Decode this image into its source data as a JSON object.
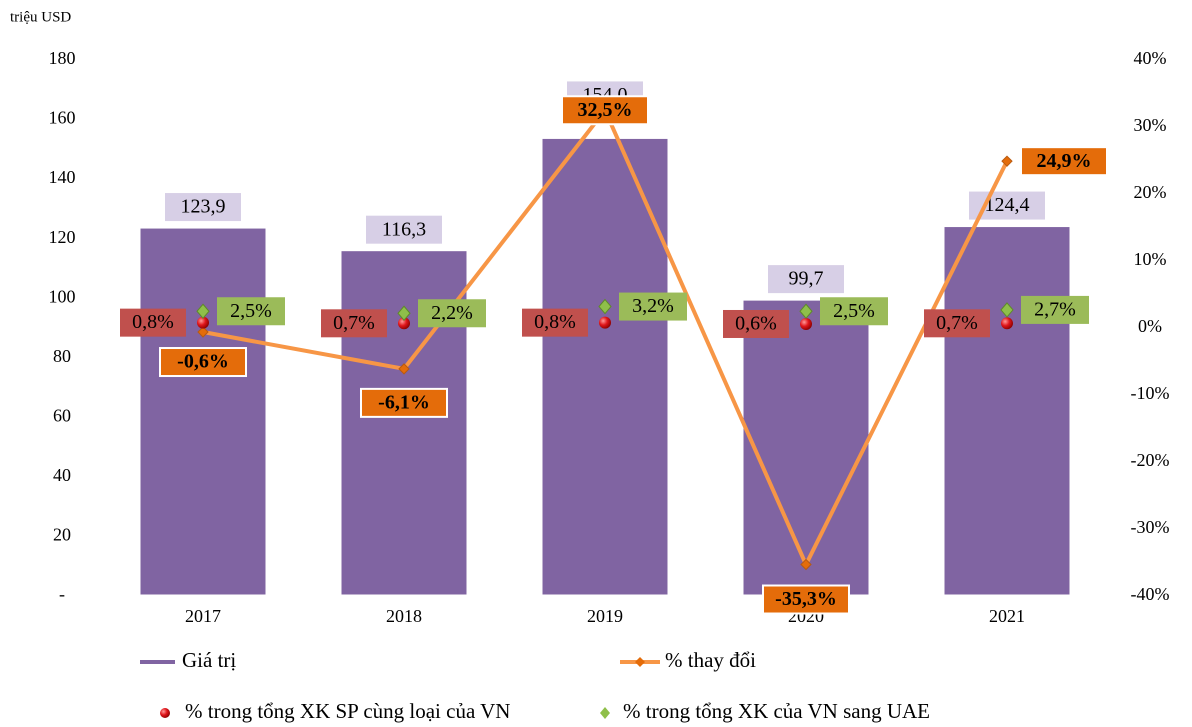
{
  "chart_data": {
    "type": "bar",
    "y_label": "triệu USD",
    "categories": [
      "2017",
      "2018",
      "2019",
      "2020",
      "2021"
    ],
    "series": [
      {
        "name": "Giá trị",
        "type": "bar",
        "color": "#8064a2",
        "values": [
          123.9,
          116.3,
          154.0,
          99.7,
          124.4
        ],
        "value_labels": [
          "123,9",
          "116,3",
          "154,0",
          "99,7",
          "124,4"
        ]
      },
      {
        "name": "% thay đổi",
        "type": "line",
        "axis": "y2",
        "color": "#f79646",
        "label_color": "#e46c0a",
        "values": [
          -0.6,
          -6.1,
          32.5,
          -35.3,
          24.9
        ],
        "value_labels": [
          "-0,6%",
          "-6,1%",
          "32,5%",
          "-35,3%",
          "24,9%"
        ]
      },
      {
        "name": "% trong tổng XK SP cùng loại của VN",
        "type": "scatter",
        "marker": "circle",
        "axis": "y2",
        "color": "#e0161b",
        "label_color": "#c0504d",
        "values": [
          0.8,
          0.7,
          0.8,
          0.6,
          0.7
        ],
        "value_labels": [
          "0,8%",
          "0,7%",
          "0,8%",
          "0,6%",
          "0,7%"
        ]
      },
      {
        "name": "% trong tổng XK của VN sang UAE",
        "type": "scatter",
        "marker": "diamond",
        "axis": "y2",
        "color": "#8fbf4a",
        "label_color": "#9bbb59",
        "values": [
          2.5,
          2.2,
          3.2,
          2.5,
          2.7
        ],
        "value_labels": [
          "2,5%",
          "2,2%",
          "3,2%",
          "2,5%",
          "2,7%"
        ]
      }
    ],
    "ylim": [
      0,
      180
    ],
    "yticks": [
      {
        "value": 0,
        "label": "-"
      },
      20,
      40,
      60,
      80,
      100,
      120,
      140,
      160,
      180
    ],
    "y2lim": [
      -40,
      40
    ],
    "y2ticks": [
      {
        "value": -40,
        "label": "-40%"
      },
      {
        "value": -30,
        "label": "-30%"
      },
      {
        "value": -20,
        "label": "-20%"
      },
      {
        "value": -10,
        "label": "-10%"
      },
      {
        "value": 0,
        "label": "0%"
      },
      {
        "value": 10,
        "label": "10%"
      },
      {
        "value": 20,
        "label": "20%"
      },
      {
        "value": 30,
        "label": "30%"
      },
      {
        "value": 40,
        "label": "40%"
      }
    ],
    "legend": "bottom"
  }
}
